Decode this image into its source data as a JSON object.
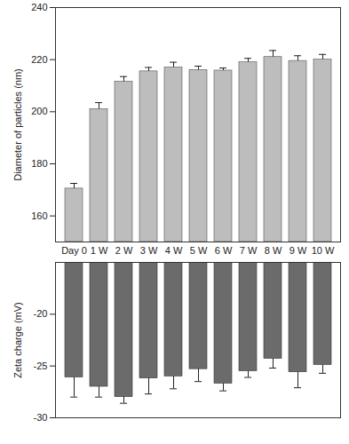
{
  "chart_data": [
    {
      "type": "bar",
      "y_label": "Diameter of particles (nm)",
      "categories": [
        "Day 0",
        "1 W",
        "2 W",
        "3 W",
        "4 W",
        "5 W",
        "6 W",
        "7 W",
        "8 W",
        "9 W",
        "10 W"
      ],
      "values": [
        170.5,
        201,
        211.5,
        215.5,
        217,
        216,
        215.8,
        219,
        221,
        219.5,
        220
      ],
      "errors": [
        2,
        2.5,
        2,
        1.5,
        2,
        1.5,
        1,
        1.5,
        2.5,
        2,
        2
      ],
      "color": "#bdbdbd",
      "ylim": [
        150,
        240
      ],
      "yticks": [
        160,
        180,
        200,
        220,
        240
      ]
    },
    {
      "type": "bar",
      "y_label": "Zeta charge (mV)",
      "categories": [
        "Day 0",
        "1 W",
        "2 W",
        "3 W",
        "4 W",
        "5 W",
        "6 W",
        "7 W",
        "8 W",
        "9 W",
        "10 W"
      ],
      "values": [
        -26.1,
        -27,
        -28,
        -26.2,
        -26,
        -25.3,
        -26.7,
        -25.5,
        -24.3,
        -25.6,
        -24.9
      ],
      "errors": [
        1.9,
        1,
        0.6,
        1.5,
        1.2,
        1.2,
        0.7,
        0.6,
        0.9,
        1.5,
        0.8
      ],
      "color": "#6b6b6b",
      "ylim": [
        -30,
        -15
      ],
      "yticks": [
        -30,
        -25,
        -20
      ],
      "tick_labels": "y"
    }
  ]
}
